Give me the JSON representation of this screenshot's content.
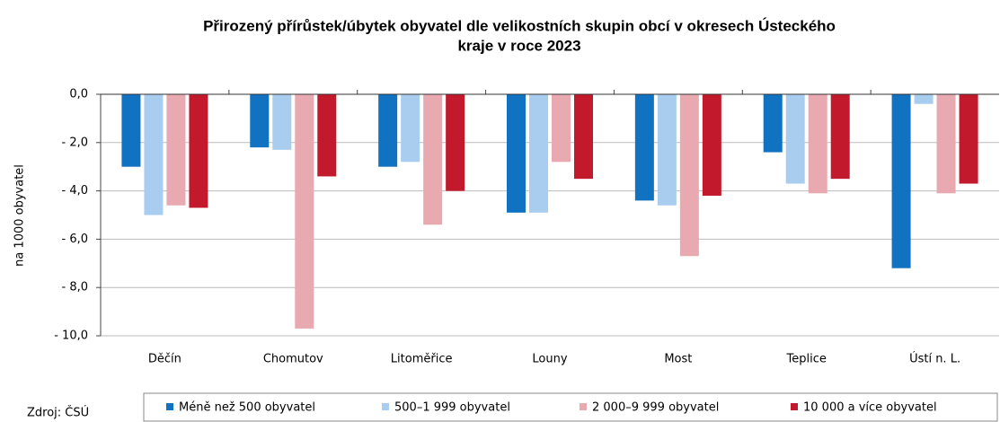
{
  "chart_data": {
    "type": "bar",
    "title": "Přirozený přírůstek/úbytek  obyvatel dle velikostních skupin  obcí v okresech  Ústeckého",
    "subtitle": "kraje v roce 2023",
    "y_label": "na 1000 obyvatel",
    "source": "Zdroj: ČSÚ",
    "categories": [
      "Děčín",
      "Chomutov",
      "Litoměřice",
      "Louny",
      "Most",
      "Teplice",
      "Ústí n. L."
    ],
    "series": [
      {
        "name": "Méně než 500 obyvatel",
        "color": "#1072c0",
        "values": [
          -3.0,
          -2.2,
          -3.0,
          -4.9,
          -4.4,
          -2.4,
          -7.2
        ]
      },
      {
        "name": "500–1 999 obyvatel",
        "color": "#a9cdee",
        "values": [
          -5.0,
          -2.3,
          -2.8,
          -4.9,
          -4.6,
          -3.7,
          -0.4
        ]
      },
      {
        "name": "2 000–9 999 obyvatel",
        "color": "#e8a9b0",
        "values": [
          -4.6,
          -9.7,
          -5.4,
          -2.8,
          -6.7,
          -4.1,
          -4.1
        ]
      },
      {
        "name": "10 000 a více obyvatel",
        "color": "#c21a2c",
        "values": [
          -4.7,
          -3.4,
          -4.0,
          -3.5,
          -4.2,
          -3.5,
          -3.7
        ]
      }
    ],
    "ylim": [
      -10,
      0
    ],
    "yticks": [
      {
        "value": 0,
        "label": "0,0"
      },
      {
        "value": -2,
        "label": "- 2,0"
      },
      {
        "value": -4,
        "label": "- 4,0"
      },
      {
        "value": -6,
        "label": "- 6,0"
      },
      {
        "value": -8,
        "label": "- 8,0"
      },
      {
        "value": -10,
        "label": "- 10,0"
      }
    ],
    "grid": true,
    "legend": "bottom"
  }
}
